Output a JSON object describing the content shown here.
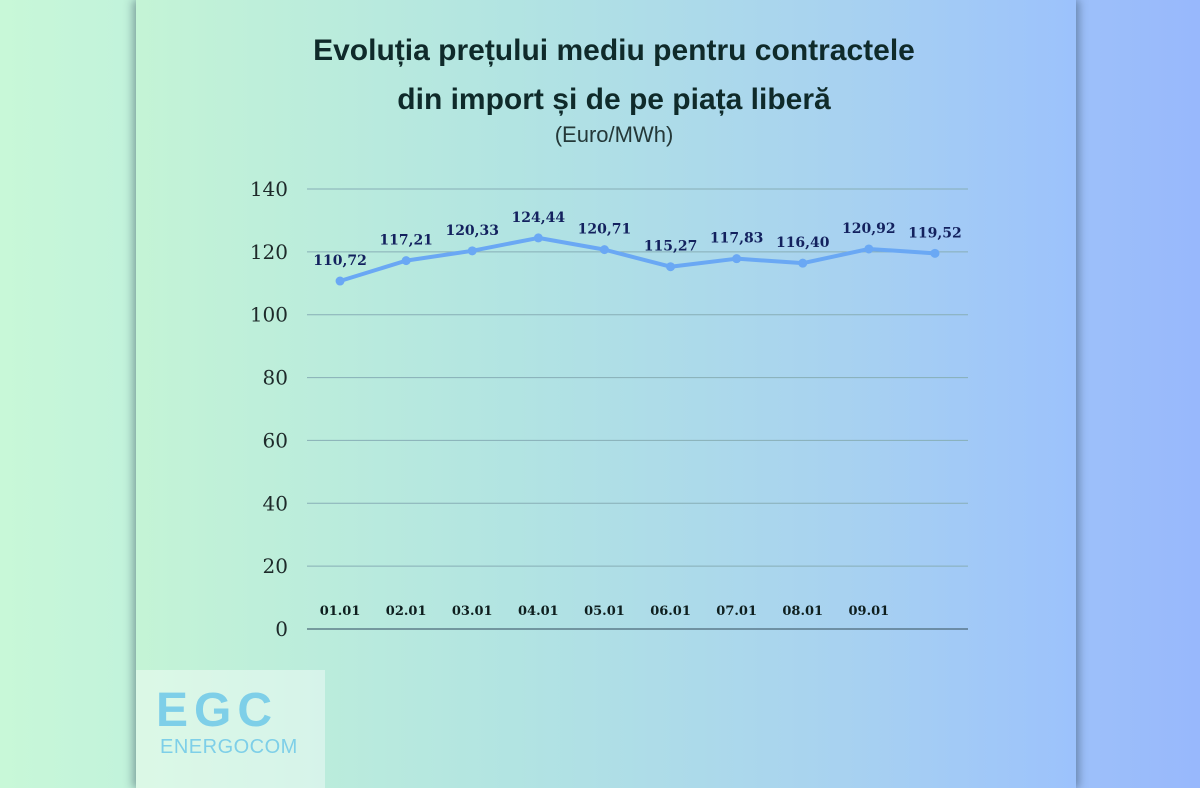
{
  "title_line1": "Evoluția prețului mediu pentru contractele",
  "title_line2": "din import și de pe piața liberă",
  "subtitle": "(Euro/MWh)",
  "logo": {
    "mark": "EGC",
    "name": "ENERGOCOM"
  },
  "colors": {
    "line": "#6aa8f4",
    "grid": "#87aeb6",
    "axis": "#4b6878",
    "label": "#13215e"
  },
  "chart_data": {
    "type": "line",
    "title": "Evoluția prețului mediu pentru contractele din import și de pe piața liberă",
    "subtitle": "(Euro/MWh)",
    "categories": [
      "01.01",
      "02.01",
      "03.01",
      "04.01",
      "05.01",
      "06.01",
      "07.01",
      "08.01",
      "09.01",
      ""
    ],
    "values": [
      110.72,
      117.21,
      120.33,
      124.44,
      120.71,
      115.27,
      117.83,
      116.4,
      120.92,
      119.52
    ],
    "data_labels": [
      "110,72",
      "117,21",
      "120,33",
      "124,44",
      "120,71",
      "115,27",
      "117,83",
      "116,40",
      "120,92",
      "119,52"
    ],
    "ylim": [
      0,
      140
    ],
    "yticks": [
      0,
      20,
      40,
      60,
      80,
      100,
      120,
      140
    ],
    "grid": true,
    "legend": "none",
    "xlabel": "",
    "ylabel": ""
  }
}
